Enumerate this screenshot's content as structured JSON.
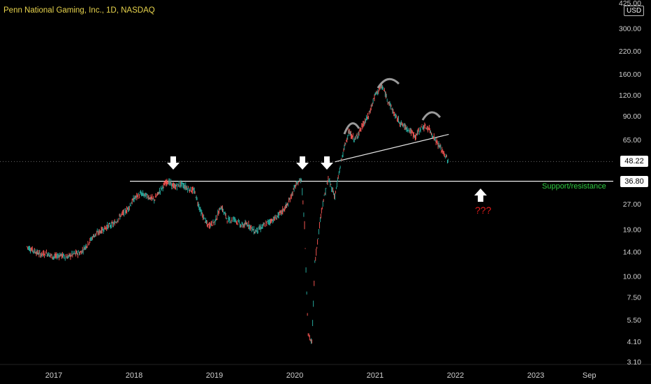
{
  "header": {
    "title": "Penn National Gaming, Inc., 1D, NASDAQ"
  },
  "axis": {
    "currency": "USD"
  },
  "chart_data": {
    "type": "line",
    "title": "Penn National Gaming, Inc., 1D, NASDAQ",
    "xlabel": "",
    "ylabel": "",
    "scale": "log",
    "ylim": [
      3.1,
      425.0
    ],
    "grid": false,
    "y_ticks": [
      "425.00",
      "300.00",
      "220.00",
      "160.00",
      "120.00",
      "90.00",
      "65.00",
      "48.22",
      "36.80",
      "27.00",
      "19.00",
      "14.00",
      "10.00",
      "7.50",
      "5.50",
      "4.10",
      "3.10"
    ],
    "x_ticks": [
      "2017",
      "2018",
      "2019",
      "2020",
      "2021",
      "2022",
      "2023",
      "Sep"
    ],
    "last_price": "48.22",
    "support_level": "36.80",
    "annotations": {
      "support_label": "Support/resistance",
      "question": "???"
    },
    "series": [
      {
        "x": [
          "2016-09",
          "2016-10",
          "2016-11",
          "2016-12",
          "2017-01",
          "2017-02",
          "2017-03",
          "2017-04",
          "2017-05",
          "2017-06",
          "2017-07",
          "2017-08",
          "2017-09",
          "2017-10",
          "2017-11",
          "2017-12",
          "2018-01",
          "2018-02",
          "2018-03",
          "2018-04",
          "2018-05",
          "2018-06",
          "2018-07",
          "2018-08",
          "2018-09",
          "2018-10",
          "2018-11",
          "2018-12",
          "2019-01",
          "2019-02",
          "2019-03",
          "2019-04",
          "2019-05",
          "2019-06",
          "2019-07",
          "2019-08",
          "2019-09",
          "2019-10",
          "2019-11",
          "2019-12",
          "2020-01",
          "2020-02",
          "2020-02-15",
          "2020-03",
          "2020-03-18",
          "2020-04",
          "2020-05",
          "2020-06",
          "2020-07",
          "2020-08",
          "2020-09",
          "2020-10",
          "2020-11",
          "2020-12",
          "2021-01",
          "2021-02",
          "2021-03",
          "2021-04",
          "2021-05",
          "2021-06",
          "2021-07",
          "2021-08",
          "2021-09",
          "2021-10",
          "2021-11",
          "2021-12"
        ],
        "values": [
          15.0,
          14.2,
          13.5,
          13.7,
          13.0,
          13.4,
          13.0,
          13.6,
          13.8,
          15.5,
          17.5,
          18.6,
          19.8,
          20.5,
          23.0,
          25.0,
          29.0,
          31.0,
          30.0,
          28.5,
          33.0,
          37.0,
          34.0,
          35.5,
          33.5,
          32.0,
          24.0,
          20.0,
          21.0,
          26.0,
          21.5,
          22.0,
          20.0,
          20.5,
          18.5,
          19.5,
          21.0,
          22.0,
          24.0,
          27.0,
          34.0,
          38.0,
          20.0,
          4.5,
          4.0,
          12.0,
          25.0,
          38.0,
          30.0,
          50.0,
          72.0,
          65.0,
          77.0,
          90.0,
          120.0,
          136.0,
          110.0,
          90.0,
          80.0,
          75.0,
          68.0,
          78.0,
          76.0,
          65.0,
          56.0,
          48.22
        ]
      }
    ]
  }
}
